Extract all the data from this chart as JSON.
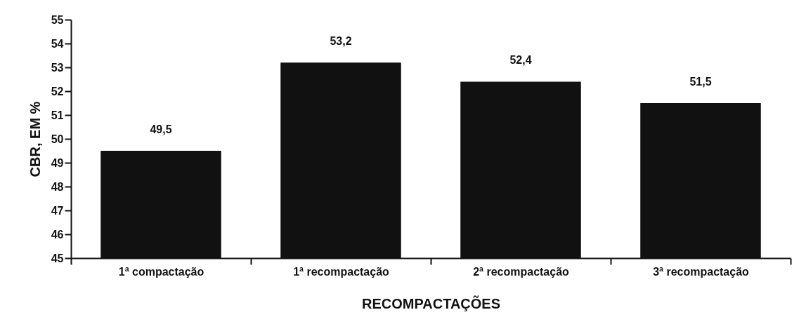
{
  "chart_data": {
    "type": "bar",
    "xlabel": "RECOMPACTAÇÕES",
    "ylabel": "CBR, EM %",
    "categories": [
      "1ª compactação",
      "1ª recompactação",
      "2ª recompactação",
      "3ª recompactação"
    ],
    "values": [
      49.5,
      53.2,
      52.4,
      51.5
    ],
    "color": "#111111",
    "value_labels": [
      "49,5",
      "53,2",
      "52,4",
      "51,5"
    ],
    "ylim": [
      45,
      55
    ],
    "yticks": [
      45,
      46,
      47,
      48,
      49,
      50,
      51,
      52,
      53,
      54,
      55
    ],
    "grid": false
  }
}
